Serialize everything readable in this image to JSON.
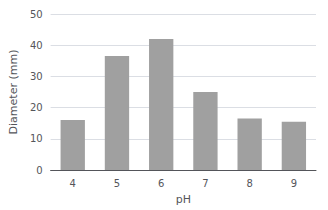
{
  "chart_data": {
    "type": "bar",
    "xlabel": "pH",
    "ylabel": "Diameter (mm)",
    "categories": [
      "4",
      "5",
      "6",
      "7",
      "8",
      "9"
    ],
    "values": [
      16,
      36.5,
      42,
      25,
      16.5,
      15.5
    ],
    "color": "#a0a0a0",
    "ylim": [
      0,
      50
    ],
    "yticks": [
      0,
      10,
      20,
      30,
      40,
      50
    ],
    "grid": true
  }
}
